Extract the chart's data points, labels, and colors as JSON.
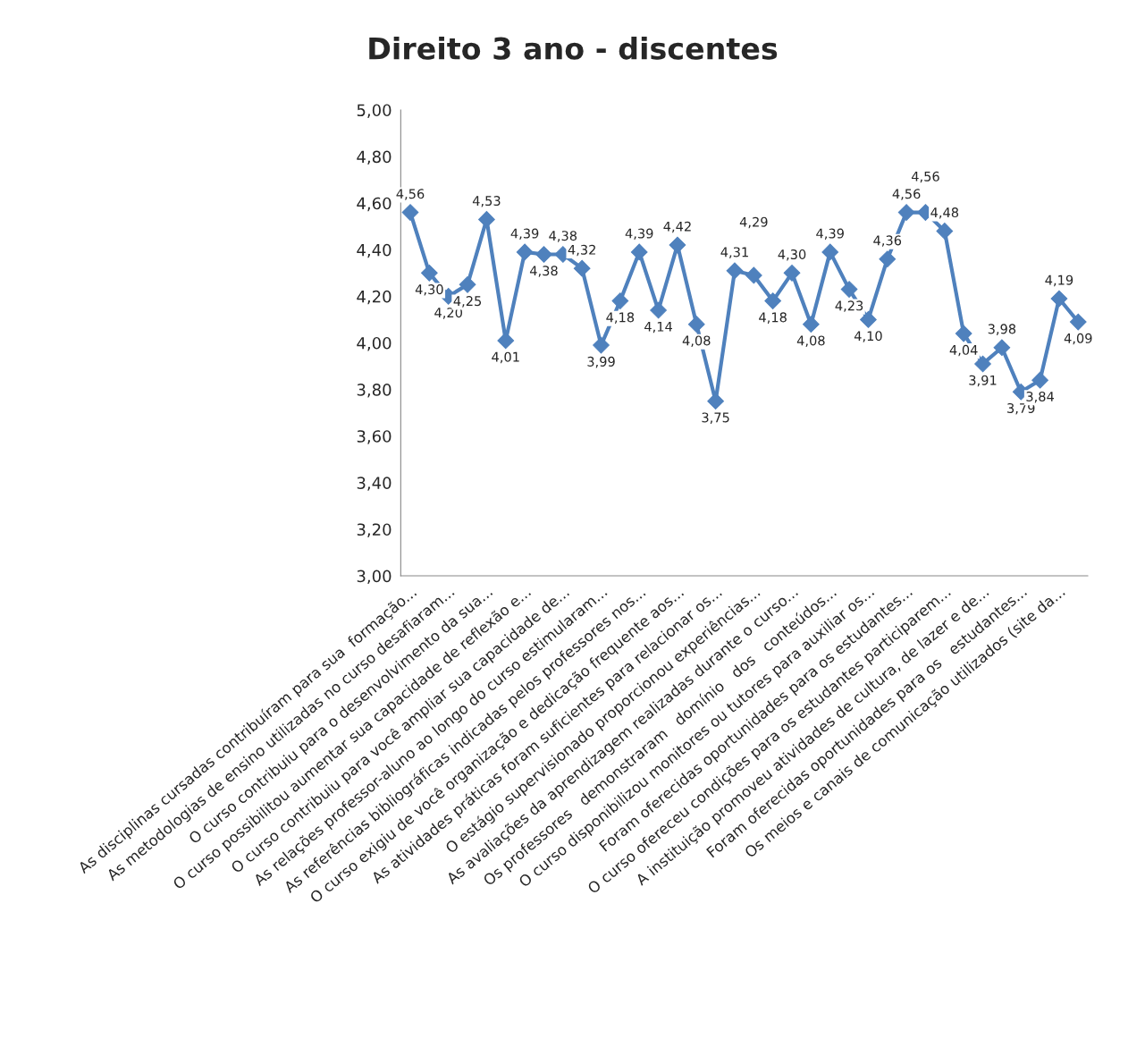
{
  "chart_data": {
    "type": "line",
    "title": "Direito 3 ano - discentes",
    "categories": [
      "As disciplinas cursadas contribuíram para sua  formação...",
      null,
      "As metodologias de ensino utilizadas no curso desafiaram...",
      null,
      "O curso contribuiu para o desenvolvimento da sua...",
      null,
      "O curso possibilitou aumentar sua capacidade de reflexão e...",
      null,
      "O curso contribuiu para você ampliar sua capacidade de...",
      null,
      "As relações professor-aluno ao longo do curso estimularam...",
      null,
      "As referências bibliográficas indicadas pelos professores nos...",
      null,
      "O curso exigiu de você organização e dedicação frequente aos...",
      null,
      "As atividades práticas foram suficientes para relacionar os...",
      null,
      "O estágio supervisionado proporcionou experiências...",
      null,
      "As avaliações da aprendizagem realizadas durante o curso...",
      null,
      "Os professores   demonstraram   domínio   dos   conteúdos...",
      null,
      "O curso disponibilizou monitores ou tutores para auxiliar os...",
      null,
      "Foram oferecidas oportunidades para os estudantes...",
      null,
      "O curso ofereceu condições para os estudantes participarem...",
      null,
      "A instituição promoveu atividades de cultura, de lazer e de...",
      null,
      "Foram oferecidas oportunidades para os   estudantes...",
      null,
      "Os meios e canais de comunicação utilizados (site da...",
      null
    ],
    "series": [
      {
        "color": "#4f81bd",
        "values": [
          4.56,
          4.3,
          4.2,
          4.25,
          4.53,
          4.01,
          4.39,
          4.38,
          4.38,
          4.32,
          3.99,
          4.18,
          4.39,
          4.14,
          4.42,
          4.08,
          3.75,
          4.31,
          4.29,
          4.18,
          4.3,
          4.08,
          4.39,
          4.23,
          4.1,
          4.36,
          4.56,
          4.56,
          4.48,
          4.04,
          3.91,
          3.98,
          3.79,
          3.84,
          4.19,
          4.09
        ],
        "value_labels": [
          "4,56",
          "4,30",
          "4,20",
          "4,25",
          "4,53",
          "4,01",
          "4,39",
          "4,38",
          "4,38",
          "4,32",
          "3,99",
          "4,18",
          "4,39",
          "4,14",
          "4,42",
          "4,08",
          "3,75",
          "4,31",
          "4,29",
          "4,18",
          "4,30",
          "4,08",
          "4,39",
          "4,23",
          "4,10",
          "4,36",
          "4,56",
          "4,56",
          "4,48",
          "4,04",
          "3,91",
          "3,98",
          "3,79",
          "3,84",
          "4,19",
          "4,09"
        ]
      }
    ],
    "ylim": [
      3.0,
      5.0
    ],
    "yticks": [
      {
        "value": 3.0,
        "label": "3,00"
      },
      {
        "value": 3.2,
        "label": "3,20"
      },
      {
        "value": 3.4,
        "label": "3,40"
      },
      {
        "value": 3.6,
        "label": "3,60"
      },
      {
        "value": 3.8,
        "label": "3,80"
      },
      {
        "value": 4.0,
        "label": "4,00"
      },
      {
        "value": 4.2,
        "label": "4,20"
      },
      {
        "value": 4.4,
        "label": "4,40"
      },
      {
        "value": 4.6,
        "label": "4,60"
      },
      {
        "value": 4.8,
        "label": "4,80"
      },
      {
        "value": 5.0,
        "label": "5,00"
      }
    ],
    "grid": false,
    "legend": false,
    "marker": "diamond",
    "line_style": "solid"
  }
}
